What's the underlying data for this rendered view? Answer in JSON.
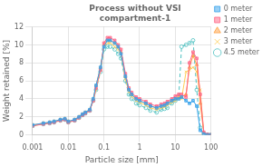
{
  "chart_data": {
    "type": "line",
    "title": "Process without VSI\ncompartment-1",
    "x_label": "Particle size [mm]",
    "y_label": "Weight retained [%]",
    "log": "x",
    "xlim": [
      0.001,
      100
    ],
    "xticks": [
      0.001,
      0.01,
      0.1,
      1,
      10,
      100
    ],
    "ylim": [
      0,
      12
    ],
    "yticks": [
      0,
      2,
      4,
      6,
      8,
      10,
      12
    ],
    "grid": true,
    "legend": "right",
    "x": [
      0.001,
      0.002,
      0.003,
      0.004,
      0.006,
      0.008,
      0.01,
      0.015,
      0.02,
      0.025,
      0.03,
      0.04,
      0.05,
      0.06,
      0.08,
      0.1,
      0.125,
      0.15,
      0.2,
      0.25,
      0.3,
      0.4,
      0.5,
      0.6,
      0.8,
      1.0,
      1.5,
      2.0,
      3.0,
      4.0,
      5.0,
      6.0,
      8.0,
      10.0,
      12.5,
      15.0,
      20.0,
      25.0,
      31.5,
      40.0,
      50.0,
      63.0,
      80.0,
      100.0
    ],
    "series": [
      {
        "name": "0 meter",
        "marker": "square",
        "line_style": "solid",
        "values": [
          1.1,
          1.3,
          1.4,
          1.5,
          1.7,
          1.8,
          1.5,
          1.7,
          2.0,
          2.3,
          2.5,
          2.8,
          4.0,
          5.5,
          7.5,
          9.8,
          10.5,
          10.5,
          10.2,
          9.8,
          9.0,
          6.5,
          5.0,
          4.5,
          4.0,
          3.8,
          3.5,
          3.2,
          3.0,
          3.2,
          3.3,
          3.5,
          3.8,
          4.0,
          4.0,
          4.2,
          3.8,
          3.5,
          3.8,
          3.2,
          0.5,
          0.1,
          0.0,
          0.0
        ]
      },
      {
        "name": "1 meter",
        "marker": "square",
        "line_style": "solid",
        "values": [
          1.0,
          1.2,
          1.3,
          1.4,
          1.6,
          1.7,
          1.4,
          1.6,
          1.9,
          2.2,
          2.4,
          2.7,
          3.8,
          5.2,
          7.2,
          10.2,
          10.8,
          10.8,
          10.5,
          10.0,
          9.5,
          6.8,
          5.2,
          4.7,
          4.2,
          4.0,
          3.7,
          3.4,
          3.2,
          3.4,
          3.5,
          3.7,
          4.0,
          4.3,
          4.5,
          4.5,
          4.2,
          8.0,
          9.2,
          8.5,
          4.5,
          0.3,
          0.05,
          0.0
        ]
      },
      {
        "name": "2 meter",
        "marker": "triangle",
        "line_style": "solid",
        "values": [
          1.1,
          1.3,
          1.4,
          1.5,
          1.7,
          1.8,
          1.5,
          1.7,
          2.0,
          2.3,
          2.5,
          2.8,
          4.0,
          5.5,
          7.5,
          10.0,
          10.5,
          10.5,
          10.2,
          9.8,
          9.2,
          6.5,
          5.0,
          4.5,
          4.0,
          3.8,
          3.5,
          3.2,
          3.0,
          3.2,
          3.3,
          3.5,
          3.8,
          4.0,
          4.2,
          4.2,
          4.5,
          7.5,
          8.8,
          7.8,
          3.5,
          0.2,
          0.05,
          0.0
        ]
      },
      {
        "name": "3 meter",
        "marker": "x",
        "line_style": "solid",
        "values": [
          1.0,
          1.2,
          1.3,
          1.4,
          1.6,
          1.7,
          1.4,
          1.6,
          1.9,
          2.2,
          2.4,
          2.7,
          3.8,
          5.0,
          7.2,
          9.8,
          10.2,
          10.2,
          9.8,
          9.5,
          9.0,
          6.2,
          4.8,
          4.3,
          3.8,
          3.6,
          3.3,
          3.0,
          2.8,
          3.0,
          3.1,
          3.3,
          3.6,
          3.8,
          4.0,
          4.0,
          7.0,
          7.2,
          7.5,
          7.0,
          5.0,
          0.2,
          0.05,
          0.0
        ]
      },
      {
        "name": "4.5 meter",
        "marker": "circle",
        "line_style": "dashed",
        "values": [
          1.0,
          1.2,
          1.3,
          1.4,
          1.6,
          1.7,
          1.4,
          1.6,
          1.9,
          2.2,
          2.4,
          2.7,
          3.8,
          5.0,
          7.0,
          9.5,
          9.8,
          9.8,
          9.5,
          9.0,
          8.5,
          6.0,
          4.5,
          4.0,
          3.5,
          3.3,
          3.0,
          2.7,
          2.5,
          2.8,
          2.9,
          3.0,
          3.5,
          3.8,
          4.2,
          9.8,
          10.0,
          10.2,
          10.5,
          5.0,
          0.8,
          0.1,
          0.0,
          0.0
        ]
      }
    ]
  }
}
